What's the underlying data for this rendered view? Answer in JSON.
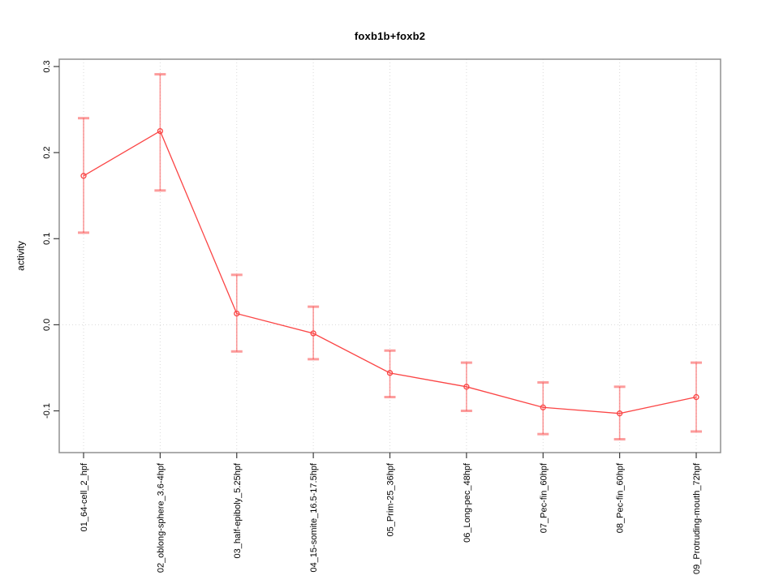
{
  "chart_data": {
    "type": "line",
    "title": "foxb1b+foxb2",
    "xlabel": "",
    "ylabel": "activity",
    "categories": [
      "01_64-cell_2_hpf",
      "02_oblong-sphere_3.6-4hpf",
      "03_half-epiboly_5.25hpf",
      "04_15-somite_16.5-17.5hpf",
      "05_Prim-25_36hpf",
      "06_Long-pec_48hpf",
      "07_Pec-fin_60hpf",
      "08_Pec-fin_60hpf",
      "09_Protruding-mouth_72hpf"
    ],
    "series": [
      {
        "name": "foxb1b+foxb2",
        "values": [
          0.173,
          0.225,
          0.013,
          -0.01,
          -0.056,
          -0.072,
          -0.096,
          -0.103,
          -0.084
        ],
        "ci_low": [
          0.107,
          0.156,
          -0.031,
          -0.04,
          -0.084,
          -0.1,
          -0.127,
          -0.133,
          -0.124
        ],
        "ci_high": [
          0.24,
          0.291,
          0.058,
          0.021,
          -0.03,
          -0.044,
          -0.067,
          -0.072,
          -0.044
        ]
      }
    ],
    "yticks": [
      {
        "value": -0.1,
        "label": "-0.1"
      },
      {
        "value": 0.0,
        "label": "0.0"
      },
      {
        "value": 0.1,
        "label": "0.1"
      },
      {
        "value": 0.2,
        "label": "0.2"
      },
      {
        "value": 0.3,
        "label": "0.3"
      }
    ],
    "ylim": [
      -0.1485,
      0.3085
    ],
    "grid": {
      "horizontal_at": [
        0.0
      ],
      "vertical": "every-category",
      "style": "dotted"
    },
    "legend": "none",
    "colors": {
      "line": "#fb4545",
      "point": "#f94444",
      "error_bar": "rgba(250,75,75,0.55)",
      "grid": "#d9d9d9",
      "box": "#909090",
      "tick": "#3c3c3c",
      "text": "#000000"
    }
  }
}
